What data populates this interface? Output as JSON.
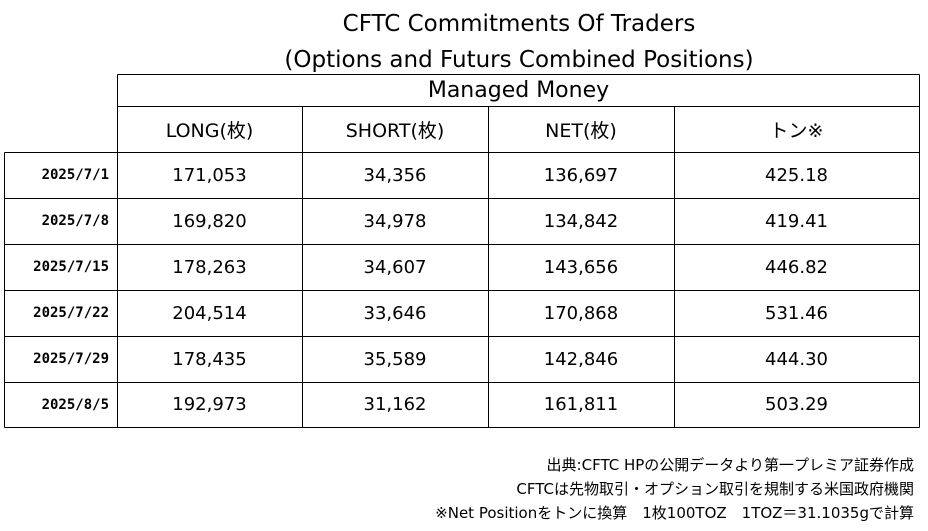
{
  "title": {
    "line1": "CFTC Commitments Of Traders",
    "line2": "(Options and Futurs Combined Positions)"
  },
  "table": {
    "group_header": "Managed Money",
    "columns": [
      "LONG(枚)",
      "SHORT(枚)",
      "NET(枚)",
      "トン※"
    ],
    "rows": [
      {
        "date": "2025/7/1",
        "long": "171,053",
        "short": "34,356",
        "net": "136,697",
        "tons": "425.18"
      },
      {
        "date": "2025/7/8",
        "long": "169,820",
        "short": "34,978",
        "net": "134,842",
        "tons": "419.41"
      },
      {
        "date": "2025/7/15",
        "long": "178,263",
        "short": "34,607",
        "net": "143,656",
        "tons": "446.82"
      },
      {
        "date": "2025/7/22",
        "long": "204,514",
        "short": "33,646",
        "net": "170,868",
        "tons": "531.46"
      },
      {
        "date": "2025/7/29",
        "long": "178,435",
        "short": "35,589",
        "net": "142,846",
        "tons": "444.30"
      },
      {
        "date": "2025/8/5",
        "long": "192,973",
        "short": "31,162",
        "net": "161,811",
        "tons": "503.29"
      }
    ]
  },
  "notes": {
    "source": "出典:CFTC HPの公開データより第一プレミア証券作成",
    "cftc": "CFTCは先物取引・オプション取引を規制する米国政府機関",
    "conversion": "※Net Positionをトンに換算　1枚100TOZ　1TOZ＝31.1035gで計算"
  }
}
